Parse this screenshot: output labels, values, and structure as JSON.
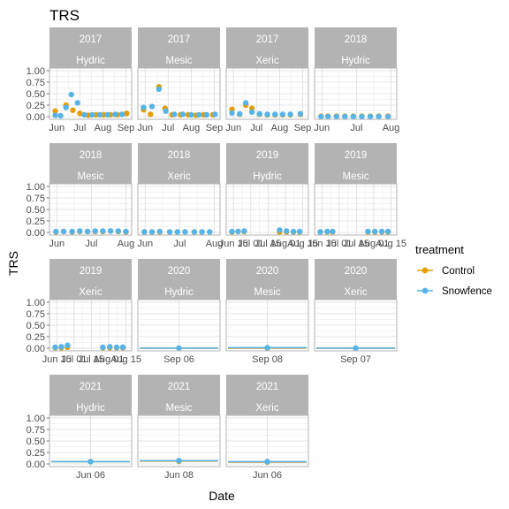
{
  "chart_data": {
    "type": "scatter",
    "title": "TRS",
    "xlabel": "Date",
    "ylabel": "TRS",
    "ylim": [
      0,
      1
    ],
    "y_ticks": [
      "0.00",
      "0.25",
      "0.50",
      "0.75",
      "1.00"
    ],
    "grid": true,
    "legend": {
      "title": "treatment",
      "placement": "right",
      "items": [
        {
          "name": "Control",
          "color": "#E69F00"
        },
        {
          "name": "Snowfence",
          "color": "#56B4E9"
        }
      ]
    },
    "panels": [
      {
        "year": "2017",
        "site": "Hydric",
        "x_ticks": [
          "Jun",
          "Jul",
          "Aug",
          "Sep"
        ],
        "series": [
          {
            "name": "Control",
            "points": [
              [
                0.04,
                0.12
              ],
              [
                0.18,
                0.25
              ],
              [
                0.27,
                0.14
              ],
              [
                0.36,
                0.07
              ],
              [
                0.47,
                0.03
              ],
              [
                0.57,
                0.04
              ],
              [
                0.67,
                0.04
              ],
              [
                0.76,
                0.04
              ],
              [
                0.85,
                0.04
              ],
              [
                0.97,
                0.07
              ]
            ]
          },
          {
            "name": "Snowfence",
            "points": [
              [
                0.04,
                0.03
              ],
              [
                0.11,
                0.02
              ],
              [
                0.18,
                0.2
              ],
              [
                0.25,
                0.48
              ],
              [
                0.33,
                0.3
              ],
              [
                0.42,
                0.04
              ],
              [
                0.52,
                0.04
              ],
              [
                0.62,
                0.04
              ],
              [
                0.72,
                0.04
              ],
              [
                0.82,
                0.05
              ],
              [
                0.91,
                0.05
              ]
            ]
          }
        ]
      },
      {
        "year": "2017",
        "site": "Mesic",
        "x_ticks": [
          "Jun",
          "Jul",
          "Aug",
          "Sep"
        ],
        "series": [
          {
            "name": "Control",
            "points": [
              [
                0.04,
                0.15
              ],
              [
                0.13,
                0.05
              ],
              [
                0.24,
                0.65
              ],
              [
                0.32,
                0.18
              ],
              [
                0.41,
                0.04
              ],
              [
                0.52,
                0.04
              ],
              [
                0.62,
                0.04
              ],
              [
                0.72,
                0.03
              ],
              [
                0.82,
                0.04
              ],
              [
                0.94,
                0.04
              ]
            ]
          },
          {
            "name": "Snowfence",
            "points": [
              [
                0.04,
                0.2
              ],
              [
                0.15,
                0.22
              ],
              [
                0.24,
                0.6
              ],
              [
                0.33,
                0.12
              ],
              [
                0.44,
                0.05
              ],
              [
                0.55,
                0.05
              ],
              [
                0.66,
                0.04
              ],
              [
                0.76,
                0.04
              ],
              [
                0.86,
                0.04
              ],
              [
                0.97,
                0.05
              ]
            ]
          }
        ]
      },
      {
        "year": "2017",
        "site": "Xeric",
        "x_ticks": [
          "Jun",
          "Jul",
          "Aug",
          "Sep"
        ],
        "series": [
          {
            "name": "Control",
            "points": [
              [
                0.04,
                0.16
              ],
              [
                0.14,
                0.05
              ],
              [
                0.22,
                0.25
              ],
              [
                0.3,
                0.18
              ],
              [
                0.4,
                0.05
              ],
              [
                0.5,
                0.04
              ],
              [
                0.6,
                0.04
              ],
              [
                0.7,
                0.04
              ],
              [
                0.8,
                0.04
              ],
              [
                0.93,
                0.05
              ]
            ]
          },
          {
            "name": "Snowfence",
            "points": [
              [
                0.04,
                0.08
              ],
              [
                0.14,
                0.06
              ],
              [
                0.22,
                0.3
              ],
              [
                0.3,
                0.1
              ],
              [
                0.4,
                0.06
              ],
              [
                0.5,
                0.05
              ],
              [
                0.6,
                0.05
              ],
              [
                0.7,
                0.05
              ],
              [
                0.8,
                0.05
              ],
              [
                0.93,
                0.06
              ]
            ]
          }
        ]
      },
      {
        "year": "2018",
        "site": "Hydric",
        "x_ticks": [
          "Jun",
          "Jul",
          "Aug"
        ],
        "series": [
          {
            "name": "Control",
            "points": [
              [
                0.05,
                0.01
              ],
              [
                0.14,
                0.01
              ],
              [
                0.25,
                0.01
              ],
              [
                0.36,
                0.01
              ],
              [
                0.47,
                0.01
              ],
              [
                0.58,
                0.01
              ],
              [
                0.69,
                0.01
              ],
              [
                0.8,
                0.01
              ],
              [
                0.92,
                0.01
              ]
            ]
          },
          {
            "name": "Snowfence",
            "points": [
              [
                0.05,
                0.0
              ],
              [
                0.14,
                0.0
              ],
              [
                0.25,
                0.0
              ],
              [
                0.36,
                0.0
              ],
              [
                0.47,
                0.0
              ],
              [
                0.58,
                0.0
              ],
              [
                0.69,
                0.0
              ],
              [
                0.8,
                0.0
              ],
              [
                0.92,
                0.0
              ]
            ]
          }
        ]
      },
      {
        "year": "2018",
        "site": "Mesic",
        "x_ticks": [
          "Jun",
          "Jul",
          "Aug"
        ],
        "series": [
          {
            "name": "Control",
            "points": [
              [
                0.05,
                0.01
              ],
              [
                0.15,
                0.02
              ],
              [
                0.26,
                0.01
              ],
              [
                0.36,
                0.02
              ],
              [
                0.46,
                0.02
              ],
              [
                0.56,
                0.02
              ],
              [
                0.66,
                0.02
              ],
              [
                0.76,
                0.03
              ],
              [
                0.86,
                0.02
              ],
              [
                0.96,
                0.01
              ]
            ]
          },
          {
            "name": "Snowfence",
            "points": [
              [
                0.05,
                0.02
              ],
              [
                0.15,
                0.02
              ],
              [
                0.26,
                0.02
              ],
              [
                0.36,
                0.03
              ],
              [
                0.46,
                0.02
              ],
              [
                0.56,
                0.03
              ],
              [
                0.66,
                0.03
              ],
              [
                0.76,
                0.03
              ],
              [
                0.86,
                0.03
              ],
              [
                0.96,
                0.02
              ]
            ]
          }
        ]
      },
      {
        "year": "2018",
        "site": "Xeric",
        "x_ticks": [
          "Jun",
          "Jul",
          "Aug"
        ],
        "series": [
          {
            "name": "Control",
            "points": [
              [
                0.05,
                0.01
              ],
              [
                0.15,
                0.01
              ],
              [
                0.25,
                0.01
              ],
              [
                0.38,
                0.01
              ],
              [
                0.48,
                0.01
              ],
              [
                0.58,
                0.01
              ],
              [
                0.7,
                0.01
              ],
              [
                0.8,
                0.01
              ],
              [
                0.9,
                0.01
              ]
            ]
          },
          {
            "name": "Snowfence",
            "points": [
              [
                0.05,
                0.01
              ],
              [
                0.15,
                0.01
              ],
              [
                0.25,
                0.02
              ],
              [
                0.38,
                0.01
              ],
              [
                0.48,
                0.01
              ],
              [
                0.58,
                0.01
              ],
              [
                0.7,
                0.01
              ],
              [
                0.8,
                0.01
              ],
              [
                0.9,
                0.01
              ]
            ]
          }
        ]
      },
      {
        "year": "2019",
        "site": "Hydric",
        "x_ticks": [
          "Jun 15",
          "Jul 01",
          "Jul 15",
          "Aug 01",
          "Aug 15"
        ],
        "series": [
          {
            "name": "Control",
            "points": [
              [
                0.04,
                0.01
              ],
              [
                0.12,
                0.02
              ],
              [
                0.2,
                0.02
              ],
              [
                0.66,
                0.01
              ],
              [
                0.75,
                0.01
              ],
              [
                0.84,
                0.01
              ],
              [
                0.92,
                0.01
              ]
            ]
          },
          {
            "name": "Snowfence",
            "points": [
              [
                0.04,
                0.02
              ],
              [
                0.12,
                0.02
              ],
              [
                0.2,
                0.03
              ],
              [
                0.66,
                0.05
              ],
              [
                0.75,
                0.03
              ],
              [
                0.84,
                0.02
              ],
              [
                0.92,
                0.02
              ]
            ]
          }
        ]
      },
      {
        "year": "2019",
        "site": "Mesic",
        "x_ticks": [
          "Jun 15",
          "Jul 01",
          "Jul 15",
          "Aug 01",
          "Aug 15"
        ],
        "series": [
          {
            "name": "Control",
            "points": [
              [
                0.04,
                0.01
              ],
              [
                0.13,
                0.01
              ],
              [
                0.2,
                0.01
              ],
              [
                0.66,
                0.01
              ],
              [
                0.75,
                0.01
              ],
              [
                0.84,
                0.01
              ],
              [
                0.92,
                0.01
              ]
            ]
          },
          {
            "name": "Snowfence",
            "points": [
              [
                0.04,
                0.01
              ],
              [
                0.13,
                0.02
              ],
              [
                0.2,
                0.02
              ],
              [
                0.66,
                0.02
              ],
              [
                0.75,
                0.02
              ],
              [
                0.84,
                0.02
              ],
              [
                0.92,
                0.02
              ]
            ]
          }
        ]
      },
      {
        "year": "2019",
        "site": "Xeric",
        "x_ticks": [
          "Jun 15",
          "Jul 01",
          "Jul 15",
          "Aug 01",
          "Aug 15"
        ],
        "series": [
          {
            "name": "Control",
            "points": [
              [
                0.04,
                0.01
              ],
              [
                0.12,
                0.01
              ],
              [
                0.2,
                0.02
              ],
              [
                0.66,
                0.01
              ],
              [
                0.75,
                0.01
              ],
              [
                0.84,
                0.01
              ],
              [
                0.92,
                0.01
              ]
            ]
          },
          {
            "name": "Snowfence",
            "points": [
              [
                0.04,
                0.02
              ],
              [
                0.12,
                0.03
              ],
              [
                0.2,
                0.06
              ],
              [
                0.66,
                0.02
              ],
              [
                0.75,
                0.03
              ],
              [
                0.84,
                0.02
              ],
              [
                0.92,
                0.02
              ]
            ]
          }
        ]
      },
      {
        "year": "2020",
        "site": "Hydric",
        "x_ticks": [
          "Sep 06"
        ],
        "series": [
          {
            "name": "Control",
            "points": [
              [
                0.5,
                0.0
              ]
            ]
          },
          {
            "name": "Snowfence",
            "points": [
              [
                0.5,
                0.0
              ]
            ]
          }
        ]
      },
      {
        "year": "2020",
        "site": "Mesic",
        "x_ticks": [
          "Sep 08"
        ],
        "series": [
          {
            "name": "Control",
            "points": [
              [
                0.5,
                0.0
              ]
            ]
          },
          {
            "name": "Snowfence",
            "points": [
              [
                0.5,
                0.01
              ]
            ]
          }
        ]
      },
      {
        "year": "2020",
        "site": "Xeric",
        "x_ticks": [
          "Sep 07"
        ],
        "series": [
          {
            "name": "Control",
            "points": [
              [
                0.5,
                0.0
              ]
            ]
          },
          {
            "name": "Snowfence",
            "points": [
              [
                0.5,
                0.0
              ]
            ]
          }
        ]
      },
      {
        "year": "2021",
        "site": "Hydric",
        "x_ticks": [
          "Jun 06"
        ],
        "series": [
          {
            "name": "Control",
            "points": [
              [
                0.5,
                0.05
              ]
            ]
          },
          {
            "name": "Snowfence",
            "points": [
              [
                0.5,
                0.05
              ]
            ]
          }
        ]
      },
      {
        "year": "2021",
        "site": "Mesic",
        "x_ticks": [
          "Jun 08"
        ],
        "series": [
          {
            "name": "Control",
            "points": [
              [
                0.5,
                0.06
              ]
            ]
          },
          {
            "name": "Snowfence",
            "points": [
              [
                0.5,
                0.07
              ]
            ]
          }
        ]
      },
      {
        "year": "2021",
        "site": "Xeric",
        "x_ticks": [
          "Jun 06"
        ],
        "series": [
          {
            "name": "Control",
            "points": [
              [
                0.5,
                0.04
              ]
            ]
          },
          {
            "name": "Snowfence",
            "points": [
              [
                0.5,
                0.05
              ]
            ]
          }
        ]
      }
    ]
  }
}
